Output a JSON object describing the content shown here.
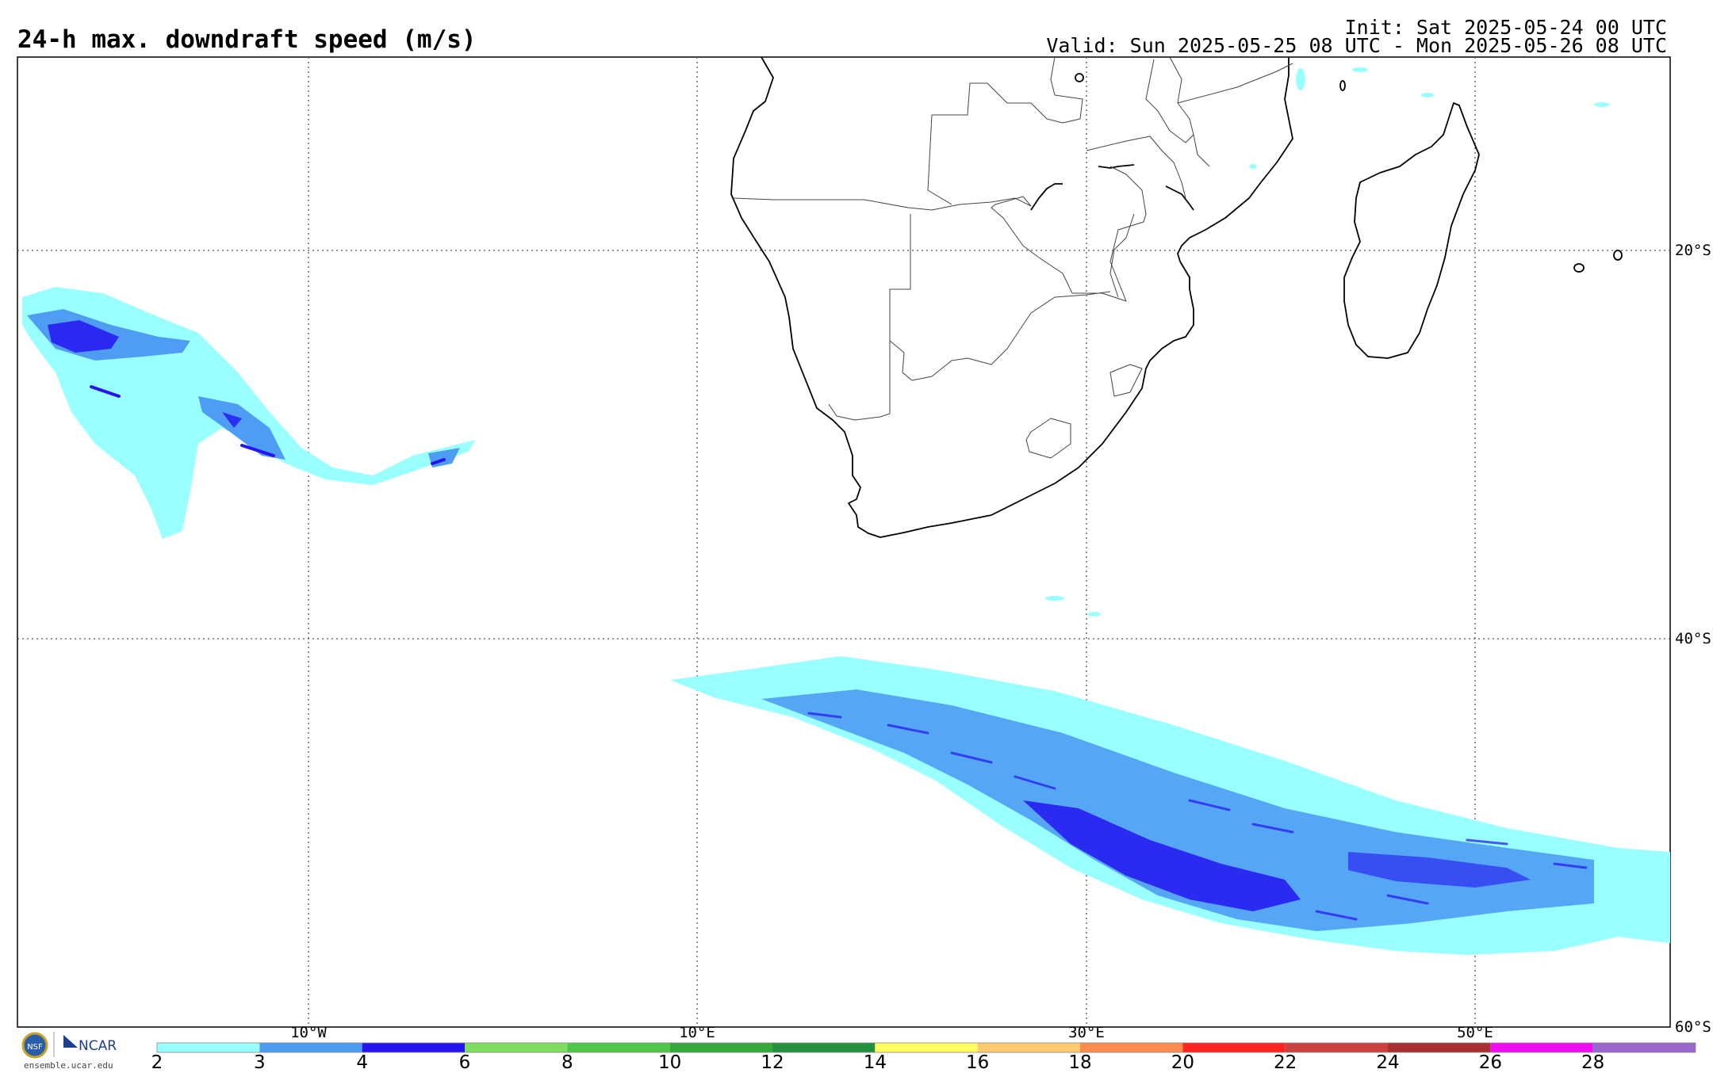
{
  "header": {
    "title": "24-h max. downdraft speed (m/s)",
    "init": "Init: Sat 2025-05-24 00 UTC",
    "valid": "Valid: Sun 2025-05-25 08 UTC - Mon 2025-05-26 08 UTC"
  },
  "map": {
    "lat_labels": [
      "20°S",
      "40°S",
      "60°S"
    ],
    "lon_labels": [
      "10°W",
      "10°E",
      "30°E",
      "50°E"
    ]
  },
  "colorbar": {
    "ticks": [
      "2",
      "3",
      "4",
      "6",
      "8",
      "10",
      "12",
      "14",
      "16",
      "18",
      "20",
      "22",
      "24",
      "26",
      "28"
    ],
    "colors": [
      "#99ffff",
      "#4f9cf5",
      "#2314f0",
      "#7fdd5f",
      "#4ec64a",
      "#34a83a",
      "#23913d",
      "#fffd62",
      "#ffc970",
      "#ff8c4f",
      "#ff2424",
      "#cc4040",
      "#a83030",
      "#f00ef0",
      "#9966cc"
    ]
  },
  "credits": {
    "site": "ensemble.ucar.edu",
    "org": "NCAR",
    "nsf_icon": "nsf-logo-icon"
  }
}
